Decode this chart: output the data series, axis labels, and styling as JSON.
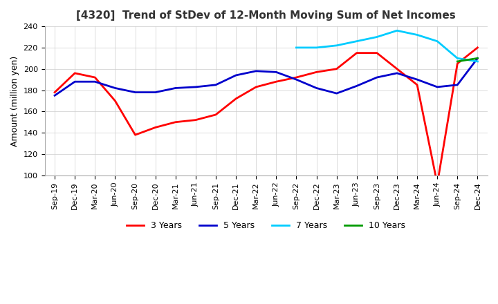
{
  "title": "[4320]  Trend of StDev of 12-Month Moving Sum of Net Incomes",
  "ylabel": "Amount (million yen)",
  "ylim": [
    100,
    240
  ],
  "yticks": [
    100,
    120,
    140,
    160,
    180,
    200,
    220,
    240
  ],
  "colors": {
    "3 Years": "#ff0000",
    "5 Years": "#0000cc",
    "7 Years": "#00ccff",
    "10 Years": "#009900"
  },
  "x_labels": [
    "Sep-19",
    "Dec-19",
    "Mar-20",
    "Jun-20",
    "Sep-20",
    "Dec-20",
    "Mar-21",
    "Jun-21",
    "Sep-21",
    "Dec-21",
    "Mar-22",
    "Jun-22",
    "Sep-22",
    "Dec-22",
    "Mar-23",
    "Jun-23",
    "Sep-23",
    "Dec-23",
    "Mar-24",
    "Jun-24",
    "Sep-24",
    "Dec-24"
  ],
  "series_3y": [
    178,
    196,
    192,
    170,
    138,
    145,
    150,
    152,
    157,
    172,
    183,
    188,
    192,
    197,
    200,
    215,
    215,
    200,
    185,
    92,
    205,
    220
  ],
  "series_5y": [
    175,
    188,
    188,
    182,
    178,
    178,
    182,
    183,
    185,
    194,
    198,
    197,
    190,
    182,
    177,
    184,
    192,
    196,
    190,
    183,
    185,
    210
  ],
  "series_7y": [
    null,
    null,
    null,
    null,
    null,
    null,
    null,
    null,
    null,
    null,
    null,
    null,
    220,
    220,
    222,
    226,
    230,
    236,
    232,
    226,
    210,
    207
  ],
  "series_10y": [
    null,
    null,
    null,
    null,
    null,
    null,
    null,
    null,
    null,
    null,
    null,
    null,
    null,
    null,
    null,
    null,
    null,
    null,
    null,
    null,
    207,
    210
  ]
}
